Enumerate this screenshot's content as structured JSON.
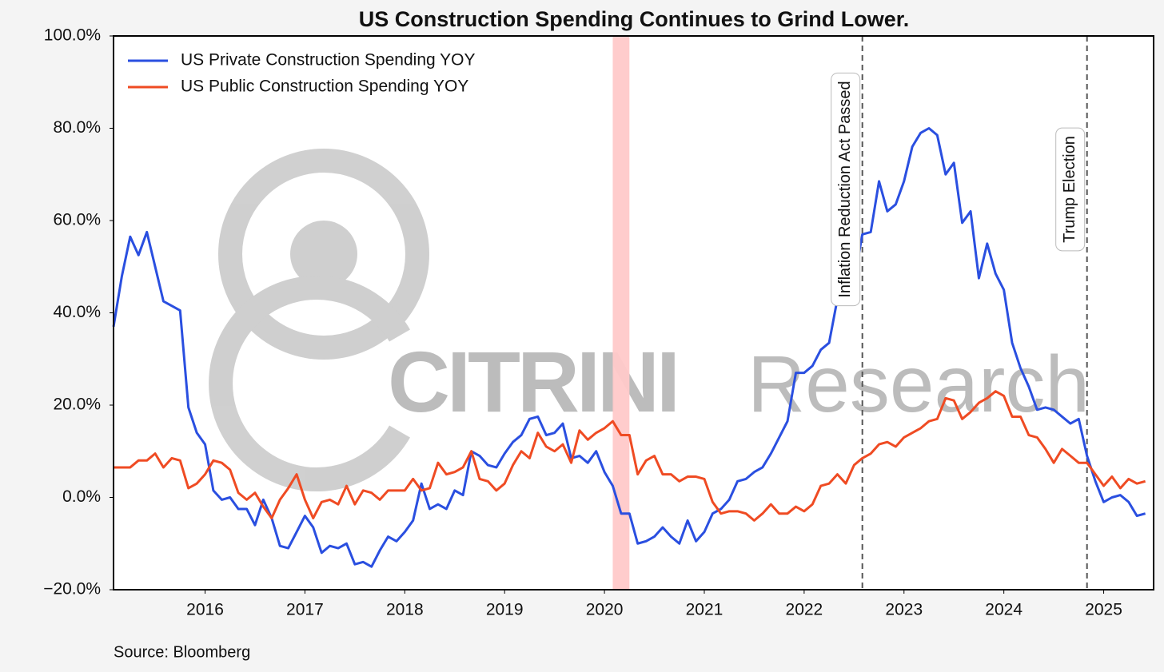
{
  "chart_data": {
    "type": "line",
    "title": "US Construction Spending Continues to Grind Lower.",
    "source": "Source: Bloomberg",
    "watermark": [
      "CITRINI",
      "Research"
    ],
    "x": [
      2015.083,
      2015.167,
      2015.25,
      2015.333,
      2015.417,
      2015.5,
      2015.583,
      2015.667,
      2015.75,
      2015.833,
      2015.917,
      2016,
      2016.083,
      2016.167,
      2016.25,
      2016.333,
      2016.417,
      2016.5,
      2016.583,
      2016.667,
      2016.75,
      2016.833,
      2016.917,
      2017,
      2017.083,
      2017.167,
      2017.25,
      2017.333,
      2017.417,
      2017.5,
      2017.583,
      2017.667,
      2017.75,
      2017.833,
      2017.917,
      2018,
      2018.083,
      2018.167,
      2018.25,
      2018.333,
      2018.417,
      2018.5,
      2018.583,
      2018.667,
      2018.75,
      2018.833,
      2018.917,
      2019,
      2019.083,
      2019.167,
      2019.25,
      2019.333,
      2019.417,
      2019.5,
      2019.583,
      2019.667,
      2019.75,
      2019.833,
      2019.917,
      2020,
      2020.083,
      2020.167,
      2020.25,
      2020.333,
      2020.417,
      2020.5,
      2020.583,
      2020.667,
      2020.75,
      2020.833,
      2020.917,
      2021,
      2021.083,
      2021.167,
      2021.25,
      2021.333,
      2021.417,
      2021.5,
      2021.583,
      2021.667,
      2021.75,
      2021.833,
      2021.917,
      2022,
      2022.083,
      2022.167,
      2022.25,
      2022.333,
      2022.417,
      2022.5,
      2022.583,
      2022.667,
      2022.75,
      2022.833,
      2022.917,
      2023,
      2023.083,
      2023.167,
      2023.25,
      2023.333,
      2023.417,
      2023.5,
      2023.583,
      2023.667,
      2023.75,
      2023.833,
      2023.917,
      2024,
      2024.083,
      2024.167,
      2024.25,
      2024.333,
      2024.417,
      2024.5,
      2024.583,
      2024.667,
      2024.75,
      2024.833,
      2024.917,
      2025,
      2025.083,
      2025.167,
      2025.25,
      2025.333,
      2025.417
    ],
    "series": [
      {
        "name": "US Private Construction Spending YOY",
        "color": "#2a4fe0",
        "values": [
          37,
          48,
          56.5,
          52.5,
          57.5,
          50,
          42.5,
          41.5,
          40.5,
          19.5,
          14,
          11.5,
          1.5,
          -0.5,
          0,
          -2.5,
          -2.5,
          -6,
          -0.5,
          -4.5,
          -10.5,
          -11,
          -7.5,
          -4,
          -6.5,
          -12,
          -10.5,
          -11,
          -10,
          -14.5,
          -14,
          -15,
          -11.5,
          -8.5,
          -9.5,
          -7.5,
          -5,
          3,
          -2.5,
          -1.5,
          -2.5,
          1.5,
          0.5,
          10,
          9,
          7,
          6.5,
          9.5,
          12,
          13.5,
          17,
          17.5,
          13.5,
          14,
          16,
          8.5,
          9,
          7.5,
          10,
          5.5,
          2.5,
          -3.5,
          -3.5,
          -10,
          -9.5,
          -8.5,
          -6.5,
          -8.5,
          -10,
          -5,
          -9.5,
          -7.5,
          -3.5,
          -2.5,
          -0.5,
          3.5,
          4,
          5.5,
          6.5,
          9.5,
          13,
          16.5,
          27,
          27,
          28.5,
          32,
          33.5,
          43,
          45.5,
          47,
          57,
          57.5,
          68.5,
          62,
          63.5,
          68.5,
          76,
          79,
          80,
          78.5,
          70,
          72.5,
          59.5,
          62,
          47.5,
          55,
          48.5,
          45,
          33.5,
          28,
          24,
          19,
          19.5,
          19,
          17.5,
          16,
          17,
          9,
          3.5,
          -1,
          0,
          0.5,
          -1,
          -4,
          -3.5
        ]
      },
      {
        "name": "US Public Construction Spending YOY",
        "color": "#ef4b23",
        "values": [
          6.5,
          6.5,
          6.5,
          8,
          8,
          9.5,
          6.5,
          8.5,
          8,
          2,
          3,
          5,
          8,
          7.5,
          6,
          1,
          -0.5,
          1,
          -2,
          -4.5,
          -0.5,
          2,
          5,
          -0.5,
          -4.5,
          -1,
          -0.5,
          -1.5,
          2.5,
          -1.5,
          1.5,
          1,
          -0.5,
          1.5,
          1.5,
          1.5,
          4,
          1.5,
          2,
          7.5,
          5,
          5.5,
          6.5,
          10,
          4,
          3.5,
          1.5,
          3,
          7,
          10,
          8.5,
          14,
          11,
          10,
          11.5,
          7.5,
          14.5,
          12.5,
          14,
          15,
          16.5,
          13.5,
          13.5,
          5,
          8,
          9,
          5,
          5,
          3.5,
          4.5,
          4.5,
          4,
          -1,
          -3.5,
          -3,
          -3,
          -3.5,
          -5,
          -3.5,
          -1.5,
          -3.5,
          -3.5,
          -2,
          -3,
          -1.5,
          2.5,
          3,
          5,
          3,
          7,
          8.5,
          9.5,
          11.5,
          12,
          11,
          13,
          14,
          15,
          16.5,
          17,
          21.5,
          21,
          17,
          18.5,
          20.5,
          21.5,
          23,
          22,
          17.5,
          17.5,
          13.5,
          13,
          10.5,
          7.5,
          10.5,
          9,
          7.5,
          7.5,
          5,
          2.5,
          4.5,
          2,
          4,
          3,
          3.5
        ]
      }
    ],
    "xlim": [
      2015.083,
      2025.5
    ],
    "xticks": [
      2016,
      2017,
      2018,
      2019,
      2020,
      2021,
      2022,
      2023,
      2024,
      2025
    ],
    "ylim": [
      -20,
      100
    ],
    "yticks": [
      {
        "value": -20,
        "label": "−20.0%"
      },
      {
        "value": 0,
        "label": "0.0%"
      },
      {
        "value": 20,
        "label": "20.0%"
      },
      {
        "value": 40,
        "label": "40.0%"
      },
      {
        "value": 60,
        "label": "60.0%"
      },
      {
        "value": 80,
        "label": "80.0%"
      },
      {
        "value": 100,
        "label": "100.0%"
      }
    ],
    "legend": "upper left",
    "shaded_regions": [
      {
        "x0": 2020.083,
        "x1": 2020.25,
        "color": "#ffc9c9"
      }
    ],
    "annotations": [
      {
        "x": 2022.583,
        "label": "Inflation Reduction Act Passed"
      },
      {
        "x": 2024.833,
        "label": "Trump Election"
      }
    ]
  }
}
